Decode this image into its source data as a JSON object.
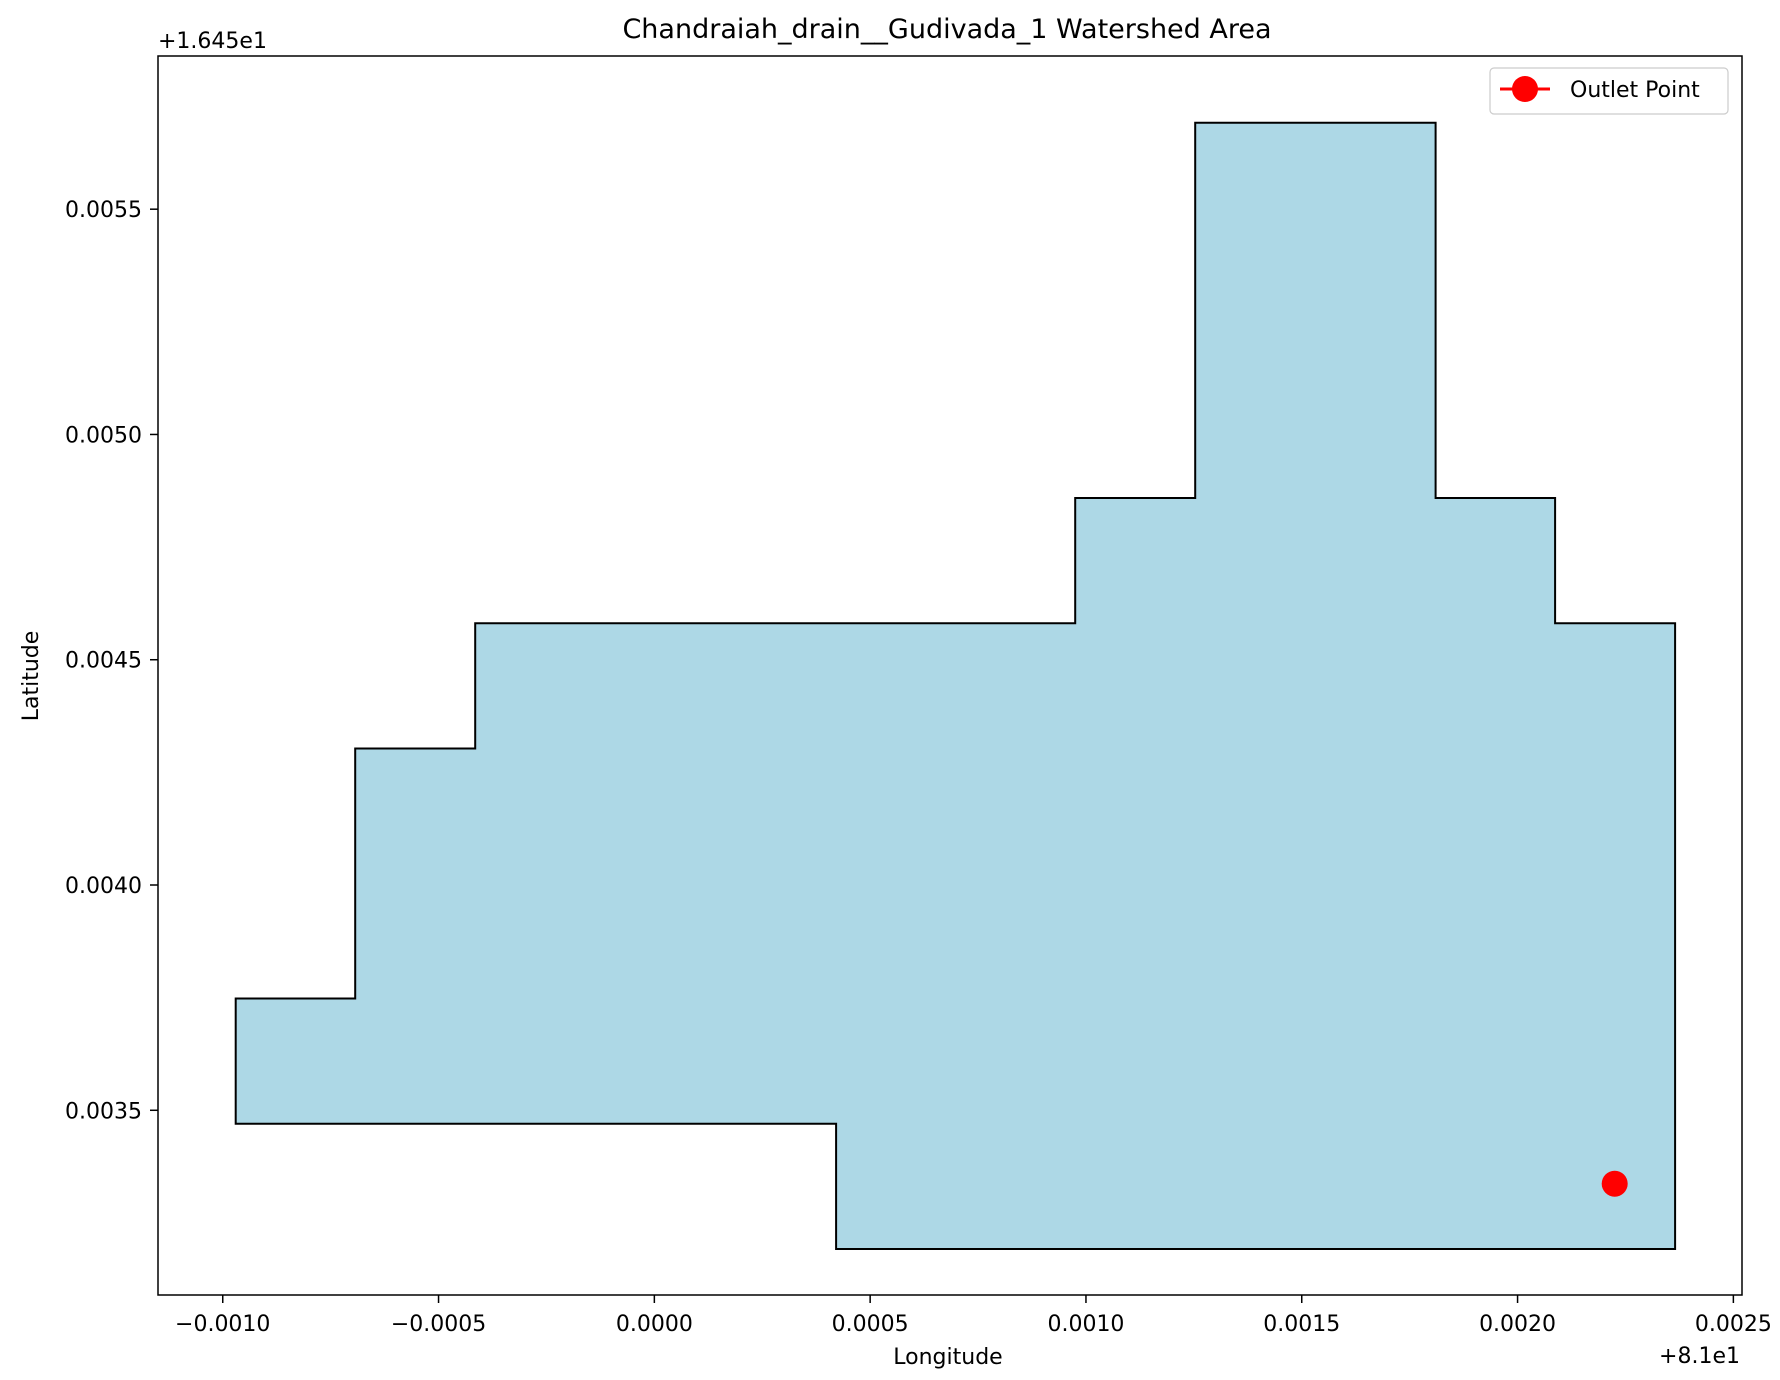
{
  "chart_data": {
    "type": "area",
    "title": "Chandraiah_drain__Gudivada_1 Watershed Area",
    "xlabel": "Longitude",
    "ylabel": "Latitude",
    "x_offset_label": "+8.1e1",
    "y_offset_label": "+1.645e1",
    "xlim": [
      -0.00115,
      0.00252
    ],
    "ylim": [
      0.00309,
      0.00584
    ],
    "x_ticks": [
      -0.001,
      -0.0005,
      0.0,
      0.0005,
      0.001,
      0.0015,
      0.002,
      0.0025
    ],
    "x_tick_labels": [
      "−0.0010",
      "−0.0005",
      "0.0000",
      "0.0005",
      "0.0010",
      "0.0015",
      "0.0020",
      "0.0025"
    ],
    "y_ticks": [
      0.0035,
      0.004,
      0.0045,
      0.005,
      0.0055
    ],
    "y_tick_labels": [
      "0.0035",
      "0.0040",
      "0.0045",
      "0.0050",
      "0.0055"
    ],
    "grid": false,
    "legend_position": "top-right",
    "watershed": {
      "fill_color": "#add8e6",
      "edge_color": "#000000",
      "polygon": [
        [
          -0.00097,
          0.003748
        ],
        [
          -0.000693,
          0.003748
        ],
        [
          -0.000693,
          0.004303
        ],
        [
          -0.000415,
          0.004303
        ],
        [
          -0.000415,
          0.004581
        ],
        [
          0.000975,
          0.004581
        ],
        [
          0.000975,
          0.004859
        ],
        [
          0.001253,
          0.004859
        ],
        [
          0.001253,
          0.005692
        ],
        [
          0.00181,
          0.005692
        ],
        [
          0.00181,
          0.004859
        ],
        [
          0.002087,
          0.004859
        ],
        [
          0.002087,
          0.004581
        ],
        [
          0.002365,
          0.004581
        ],
        [
          0.002365,
          0.003192
        ],
        [
          0.000421,
          0.003192
        ],
        [
          0.000421,
          0.00347
        ],
        [
          -0.00097,
          0.00347
        ]
      ]
    },
    "series": [
      {
        "name": "Outlet Point",
        "type": "scatter",
        "color": "#ff0000",
        "x": [
          0.002225
        ],
        "y": [
          0.003337
        ]
      }
    ]
  }
}
